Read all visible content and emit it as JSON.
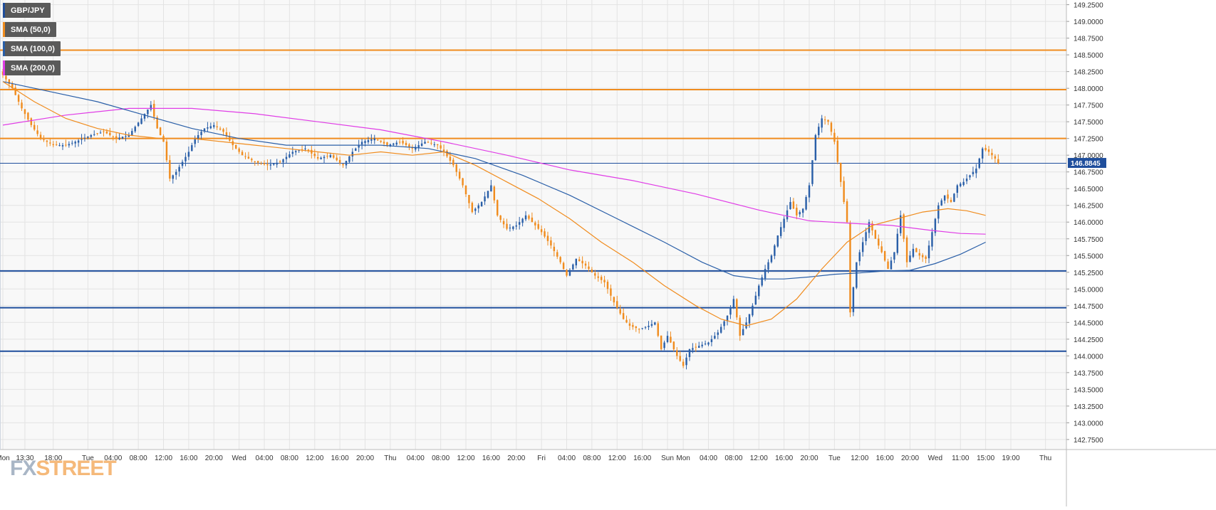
{
  "instrument": "GBP/JPY",
  "legend": [
    {
      "label": "GBP/JPY",
      "color": "#1f4e9c"
    },
    {
      "label": "SMA (50,0)",
      "color": "#f08c1e"
    },
    {
      "label": "SMA (100,0)",
      "color": "#2a5fa8"
    },
    {
      "label": "SMA (200,0)",
      "color": "#e03de6"
    }
  ],
  "watermark": {
    "part1": "FX",
    "part2": "STREET"
  },
  "colors": {
    "up_candle": "#2a5fa8",
    "down_candle": "#f08c1e",
    "resistance": "#f08c1e",
    "support": "#1f4e9c",
    "sma50": "#f08c1e",
    "sma100": "#2a5fa8",
    "sma200": "#e03de6",
    "current_price_bg": "#1f4e9c",
    "grid": "#e3e3e3",
    "plot_bg": "#f8f8f8"
  },
  "chart_data": {
    "type": "candlestick",
    "y_axis": {
      "ylim": [
        142.6,
        149.32
      ],
      "ticks": [
        "149.2500",
        "149.0000",
        "148.7500",
        "148.5000",
        "148.2500",
        "148.0000",
        "147.7500",
        "147.5000",
        "147.2500",
        "147.0000",
        "146.7500",
        "146.5000",
        "146.2500",
        "146.0000",
        "145.7500",
        "145.5000",
        "145.2500",
        "145.0000",
        "144.7500",
        "144.5000",
        "144.2500",
        "144.0000",
        "143.7500",
        "143.5000",
        "143.2500",
        "143.0000",
        "142.7500"
      ],
      "position": "right"
    },
    "x_axis": {
      "domain": [
        0,
        320
      ],
      "ticks": [
        {
          "label": "Mon",
          "x": 0
        },
        {
          "label": "13:30",
          "x": 7
        },
        {
          "label": "18:00",
          "x": 16
        },
        {
          "label": "Tue",
          "x": 27
        },
        {
          "label": "04:00",
          "x": 35
        },
        {
          "label": "08:00",
          "x": 43
        },
        {
          "label": "12:00",
          "x": 51
        },
        {
          "label": "16:00",
          "x": 59
        },
        {
          "label": "20:00",
          "x": 67
        },
        {
          "label": "Wed",
          "x": 75
        },
        {
          "label": "04:00",
          "x": 83
        },
        {
          "label": "08:00",
          "x": 91
        },
        {
          "label": "12:00",
          "x": 99
        },
        {
          "label": "16:00",
          "x": 107
        },
        {
          "label": "20:00",
          "x": 115
        },
        {
          "label": "Thu",
          "x": 123
        },
        {
          "label": "04:00",
          "x": 131
        },
        {
          "label": "08:00",
          "x": 139
        },
        {
          "label": "12:00",
          "x": 147
        },
        {
          "label": "16:00",
          "x": 155
        },
        {
          "label": "20:00",
          "x": 163
        },
        {
          "label": "Fri",
          "x": 171
        },
        {
          "label": "04:00",
          "x": 179
        },
        {
          "label": "08:00",
          "x": 187
        },
        {
          "label": "12:00",
          "x": 195
        },
        {
          "label": "16:00",
          "x": 203
        },
        {
          "label": "Sun",
          "x": 211
        },
        {
          "label": "Mon",
          "x": 216
        },
        {
          "label": "04:00",
          "x": 224
        },
        {
          "label": "08:00",
          "x": 232
        },
        {
          "label": "12:00",
          "x": 240
        },
        {
          "label": "16:00",
          "x": 248
        },
        {
          "label": "20:00",
          "x": 256
        },
        {
          "label": "Tue",
          "x": 264
        },
        {
          "label": "12:00",
          "x": 272
        },
        {
          "label": "16:00",
          "x": 280
        },
        {
          "label": "20:00",
          "x": 288
        },
        {
          "label": "Wed",
          "x": 296
        },
        {
          "label": "11:00",
          "x": 304
        },
        {
          "label": "15:00",
          "x": 312
        },
        {
          "label": "19:00",
          "x": 320
        },
        {
          "label": "Thu",
          "x": 331
        }
      ]
    },
    "current_price": "146.8845",
    "current_price_value": 146.8845,
    "horizontal_levels": [
      {
        "value": 148.57,
        "kind": "resistance"
      },
      {
        "value": 147.98,
        "kind": "resistance"
      },
      {
        "value": 147.25,
        "kind": "resistance"
      },
      {
        "value": 146.88,
        "kind": "current"
      },
      {
        "value": 145.27,
        "kind": "support"
      },
      {
        "value": 144.72,
        "kind": "support"
      },
      {
        "value": 144.07,
        "kind": "support"
      }
    ],
    "price_path": [
      [
        0,
        148.2
      ],
      [
        3,
        148.0
      ],
      [
        6,
        147.7
      ],
      [
        9,
        147.45
      ],
      [
        12,
        147.25
      ],
      [
        16,
        147.15
      ],
      [
        20,
        147.15
      ],
      [
        24,
        147.22
      ],
      [
        28,
        147.3
      ],
      [
        32,
        147.35
      ],
      [
        36,
        147.25
      ],
      [
        40,
        147.3
      ],
      [
        44,
        147.55
      ],
      [
        47,
        147.75
      ],
      [
        49,
        147.4
      ],
      [
        51,
        147.2
      ],
      [
        53,
        146.65
      ],
      [
        55,
        146.75
      ],
      [
        57,
        146.9
      ],
      [
        59,
        147.05
      ],
      [
        61,
        147.25
      ],
      [
        64,
        147.4
      ],
      [
        67,
        147.45
      ],
      [
        70,
        147.35
      ],
      [
        73,
        147.15
      ],
      [
        76,
        147.0
      ],
      [
        80,
        146.9
      ],
      [
        84,
        146.85
      ],
      [
        88,
        146.9
      ],
      [
        92,
        147.05
      ],
      [
        96,
        147.1
      ],
      [
        100,
        146.95
      ],
      [
        104,
        147.0
      ],
      [
        108,
        146.85
      ],
      [
        111,
        147.05
      ],
      [
        114,
        147.2
      ],
      [
        118,
        147.25
      ],
      [
        122,
        147.15
      ],
      [
        126,
        147.2
      ],
      [
        130,
        147.1
      ],
      [
        134,
        147.2
      ],
      [
        138,
        147.15
      ],
      [
        140,
        147.05
      ],
      [
        143,
        146.85
      ],
      [
        146,
        146.55
      ],
      [
        149,
        146.15
      ],
      [
        152,
        146.3
      ],
      [
        155,
        146.55
      ],
      [
        157,
        146.1
      ],
      [
        160,
        145.9
      ],
      [
        163,
        145.95
      ],
      [
        166,
        146.1
      ],
      [
        168,
        146.0
      ],
      [
        171,
        145.85
      ],
      [
        174,
        145.65
      ],
      [
        177,
        145.4
      ],
      [
        179,
        145.2
      ],
      [
        182,
        145.45
      ],
      [
        185,
        145.35
      ],
      [
        188,
        145.2
      ],
      [
        191,
        145.1
      ],
      [
        194,
        144.8
      ],
      [
        197,
        144.55
      ],
      [
        199,
        144.45
      ],
      [
        202,
        144.4
      ],
      [
        205,
        144.45
      ],
      [
        207,
        144.5
      ],
      [
        209,
        144.1
      ],
      [
        211,
        144.3
      ],
      [
        214,
        144.0
      ],
      [
        216,
        143.85
      ],
      [
        218,
        144.1
      ],
      [
        221,
        144.15
      ],
      [
        224,
        144.2
      ],
      [
        227,
        144.35
      ],
      [
        230,
        144.6
      ],
      [
        232,
        144.85
      ],
      [
        234,
        144.3
      ],
      [
        236,
        144.5
      ],
      [
        238,
        144.75
      ],
      [
        240,
        145.05
      ],
      [
        242,
        145.3
      ],
      [
        244,
        145.5
      ],
      [
        246,
        145.8
      ],
      [
        248,
        146.05
      ],
      [
        250,
        146.3
      ],
      [
        252,
        146.1
      ],
      [
        254,
        146.2
      ],
      [
        256,
        146.55
      ],
      [
        258,
        147.3
      ],
      [
        260,
        147.55
      ],
      [
        262,
        147.5
      ],
      [
        264,
        147.2
      ],
      [
        266,
        146.6
      ],
      [
        268,
        146.0
      ],
      [
        269,
        144.65
      ],
      [
        271,
        145.4
      ],
      [
        273,
        145.7
      ],
      [
        275,
        146.0
      ],
      [
        277,
        145.75
      ],
      [
        279,
        145.55
      ],
      [
        281,
        145.3
      ],
      [
        283,
        145.55
      ],
      [
        285,
        146.1
      ],
      [
        287,
        145.4
      ],
      [
        289,
        145.6
      ],
      [
        291,
        145.5
      ],
      [
        293,
        145.45
      ],
      [
        295,
        145.85
      ],
      [
        297,
        146.25
      ],
      [
        299,
        146.4
      ],
      [
        301,
        146.3
      ],
      [
        303,
        146.55
      ],
      [
        305,
        146.6
      ],
      [
        307,
        146.7
      ],
      [
        309,
        146.8
      ],
      [
        311,
        147.1
      ],
      [
        313,
        147.05
      ],
      [
        315,
        146.95
      ],
      [
        316,
        146.88
      ]
    ],
    "sma50": [
      [
        0,
        148.1
      ],
      [
        10,
        147.8
      ],
      [
        20,
        147.55
      ],
      [
        30,
        147.4
      ],
      [
        40,
        147.3
      ],
      [
        50,
        147.25
      ],
      [
        60,
        147.25
      ],
      [
        70,
        147.2
      ],
      [
        80,
        147.15
      ],
      [
        90,
        147.1
      ],
      [
        100,
        147.05
      ],
      [
        110,
        147.0
      ],
      [
        120,
        147.05
      ],
      [
        130,
        147.0
      ],
      [
        140,
        147.05
      ],
      [
        150,
        146.85
      ],
      [
        160,
        146.6
      ],
      [
        170,
        146.35
      ],
      [
        180,
        146.05
      ],
      [
        190,
        145.7
      ],
      [
        200,
        145.4
      ],
      [
        210,
        145.05
      ],
      [
        220,
        144.75
      ],
      [
        228,
        144.55
      ],
      [
        236,
        144.45
      ],
      [
        244,
        144.55
      ],
      [
        252,
        144.85
      ],
      [
        260,
        145.3
      ],
      [
        268,
        145.7
      ],
      [
        276,
        145.95
      ],
      [
        284,
        146.05
      ],
      [
        292,
        146.15
      ],
      [
        300,
        146.2
      ],
      [
        306,
        146.17
      ],
      [
        312,
        146.1
      ]
    ],
    "sma100": [
      [
        0,
        148.1
      ],
      [
        15,
        147.95
      ],
      [
        30,
        147.8
      ],
      [
        45,
        147.6
      ],
      [
        60,
        147.4
      ],
      [
        75,
        147.25
      ],
      [
        90,
        147.15
      ],
      [
        105,
        147.15
      ],
      [
        120,
        147.15
      ],
      [
        135,
        147.1
      ],
      [
        150,
        146.95
      ],
      [
        165,
        146.7
      ],
      [
        180,
        146.4
      ],
      [
        195,
        146.05
      ],
      [
        210,
        145.7
      ],
      [
        222,
        145.4
      ],
      [
        232,
        145.2
      ],
      [
        240,
        145.15
      ],
      [
        248,
        145.15
      ],
      [
        256,
        145.18
      ],
      [
        264,
        145.22
      ],
      [
        272,
        145.24
      ],
      [
        280,
        145.27
      ],
      [
        288,
        145.28
      ],
      [
        296,
        145.38
      ],
      [
        304,
        145.52
      ],
      [
        312,
        145.7
      ]
    ],
    "sma200": [
      [
        0,
        147.45
      ],
      [
        20,
        147.6
      ],
      [
        40,
        147.7
      ],
      [
        60,
        147.7
      ],
      [
        80,
        147.62
      ],
      [
        100,
        147.5
      ],
      [
        120,
        147.38
      ],
      [
        140,
        147.2
      ],
      [
        160,
        147.0
      ],
      [
        180,
        146.78
      ],
      [
        200,
        146.62
      ],
      [
        220,
        146.42
      ],
      [
        240,
        146.18
      ],
      [
        256,
        146.02
      ],
      [
        270,
        145.98
      ],
      [
        282,
        145.95
      ],
      [
        294,
        145.88
      ],
      [
        304,
        145.83
      ],
      [
        312,
        145.82
      ]
    ]
  }
}
